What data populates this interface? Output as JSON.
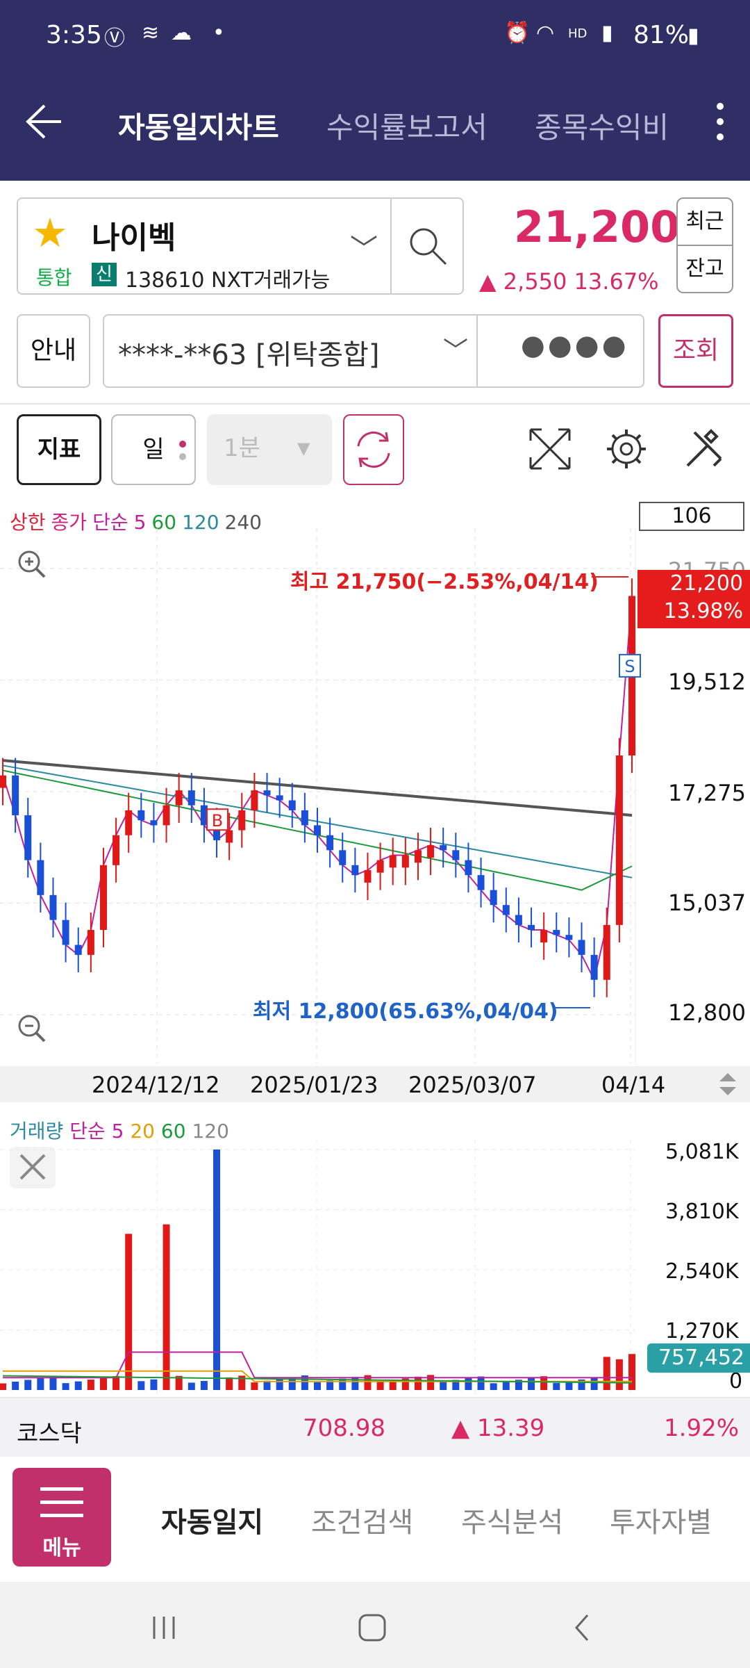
{
  "status_bar": {
    "time": "3:35",
    "battery": "81%",
    "icons": [
      "volte-icon",
      "wifi-calling-icon",
      "cloud-icon",
      "alarm-icon",
      "wifi-icon",
      "hd-voice-icon",
      "signal-icon",
      "battery-icon"
    ]
  },
  "top_nav": {
    "tabs": [
      "자동일지차트",
      "수익률보고서",
      "종목수익비"
    ]
  },
  "stock": {
    "name": "나이벡",
    "market": "통합",
    "credit": "신",
    "code_info": "138610 NXT거래가능",
    "price": "21,200",
    "change": "▲ 2,550  13.67%",
    "recent_btn": "최근",
    "balance_btn": "잔고"
  },
  "account": {
    "guide_btn": "안내",
    "number": "****-**63 [위탁종합]",
    "password": "●●●●",
    "query_btn": "조회"
  },
  "toolbar": {
    "indicator_btn": "지표",
    "period_btn": "일",
    "minute_select": "1분"
  },
  "price_chart": {
    "legend": [
      {
        "text": "상한",
        "color": "#e0203a"
      },
      {
        "text": "종가",
        "color": "#d0207a"
      },
      {
        "text": "단순",
        "color": "#c020a0"
      },
      {
        "text": "5",
        "color": "#c020a0"
      },
      {
        "text": "60",
        "color": "#1a9a3a"
      },
      {
        "text": "120",
        "color": "#2a8aa0"
      },
      {
        "text": "240",
        "color": "#555555"
      }
    ],
    "period_count": "106",
    "y_ticks": [
      "21,750",
      "19,512",
      "17,275",
      "15,037",
      "12,800"
    ],
    "high_label": "최고 21,750(−2.53%,04/14)",
    "low_label": "최저 12,800(65.63%,04/04)",
    "current_price": "21,200",
    "current_pct": "13.98%",
    "x_ticks": [
      "2024/12/12",
      "2025/01/23",
      "2025/03/07",
      "04/14"
    ],
    "buy_marker": "B",
    "sell_marker": "S"
  },
  "volume_chart": {
    "legend": [
      {
        "text": "거래량",
        "color": "#2a8aa0"
      },
      {
        "text": "단순",
        "color": "#c020a0"
      },
      {
        "text": "5",
        "color": "#c020a0"
      },
      {
        "text": "20",
        "color": "#e0a000"
      },
      {
        "text": "60",
        "color": "#1a9a3a"
      },
      {
        "text": "120",
        "color": "#888888"
      }
    ],
    "y_ticks": [
      "5,081K",
      "3,810K",
      "2,540K",
      "1,270K",
      "0"
    ],
    "current_volume": "757,452"
  },
  "chart_data": [
    {
      "type": "candlestick",
      "title": "",
      "y_axis_ticks": [
        21750,
        19512,
        17275,
        15037,
        12800
      ],
      "ylim": [
        12800,
        21750
      ],
      "x_ticks": [
        "2024/12/12",
        "2025/01/23",
        "2025/03/07",
        "04/14"
      ],
      "high": {
        "value": 21750,
        "date": "04/14"
      },
      "low": {
        "value": 12800,
        "date": "04/04"
      },
      "series": [
        {
          "name": "5",
          "close": [
            17600,
            16800,
            15900,
            15200,
            14700,
            14200,
            14000,
            14500,
            15800,
            16400,
            16900,
            16700,
            16600,
            17000,
            17300,
            17000,
            16600,
            16300,
            16500,
            16900,
            17300,
            17200,
            17100,
            16900,
            16600,
            16400,
            16100,
            15800,
            15600,
            15700,
            15900,
            16000,
            16000,
            16100,
            16200,
            16100,
            15900,
            15600,
            15300,
            15000,
            14800,
            14600,
            14500,
            14500,
            14400,
            14300,
            14000,
            13500,
            14600,
            18000,
            21200
          ]
        }
      ]
    },
    {
      "type": "bar",
      "title": "거래량",
      "y_axis_ticks": [
        5081,
        3810,
        2540,
        1270,
        0
      ],
      "ylim": [
        0,
        5081
      ],
      "current_value": 757452
    }
  ],
  "index_bar": {
    "name": "코스닥",
    "value": "708.98",
    "change": "▲ 13.39",
    "pct": "1.92%"
  },
  "bottom_nav": {
    "menu_label": "메뉴",
    "items": [
      "자동일지",
      "조건검색",
      "주식분석",
      "투자자별"
    ]
  }
}
